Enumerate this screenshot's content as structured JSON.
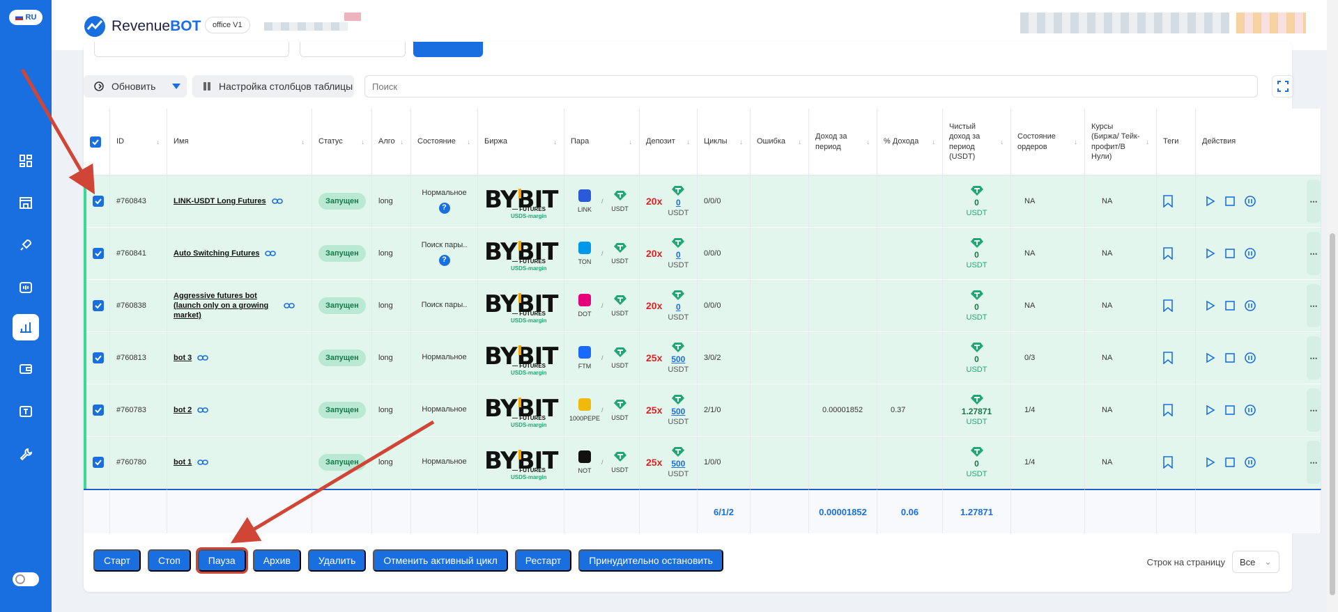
{
  "lang": "RU",
  "brand": {
    "part1": "Revenue",
    "part2": "BOT"
  },
  "office": "office V1",
  "toolbar": {
    "refresh": "Обновить",
    "columns": "Настройка столбцов таблицы",
    "search_placeholder": "Поиск"
  },
  "headers": [
    "ID",
    "Имя",
    "Статус",
    "Алго",
    "Состояние",
    "Биржа",
    "Пара",
    "Депозит",
    "Циклы",
    "Ошибка",
    "Доход за период",
    "% Дохода",
    "Чистый доход за период (USDT)",
    "Состояние ордеров",
    "Курсы (Биржа/ Тейк-профит/В Нули)",
    "Теги",
    "Действия"
  ],
  "exchange": {
    "name": "BYBIT",
    "sub1": "— FUTURES",
    "sub2": "USDS-margin"
  },
  "rows": [
    {
      "id": "#760843",
      "name": "LINK-USDT Long Futures",
      "status": "Запущен",
      "algo": "long",
      "state": "Нормальное",
      "state_q": "?",
      "coin": "LINK",
      "quote": "USDT",
      "sep": "/",
      "lev": "20x",
      "dep": "0",
      "dep_cur": "USDT",
      "cycles": "0/0/0",
      "error": "",
      "income": "",
      "pct": "",
      "net": "0",
      "net_cur": "USDT",
      "orders": "NA",
      "rates": "NA",
      "coin_color": "#2a5ada"
    },
    {
      "id": "#760841",
      "name": "Auto Switching Futures",
      "status": "Запущен",
      "algo": "long",
      "state": "Поиск пары..",
      "state_q": "?",
      "coin": "TON",
      "quote": "USDT",
      "sep": "/",
      "lev": "20x",
      "dep": "0",
      "dep_cur": "USDT",
      "cycles": "0/0/0",
      "error": "",
      "income": "",
      "pct": "",
      "net": "0",
      "net_cur": "USDT",
      "orders": "NA",
      "rates": "NA",
      "coin_color": "#0098ea"
    },
    {
      "id": "#760838",
      "name": "Aggressive futures bot (launch only on a growing market)",
      "status": "Запущен",
      "algo": "long",
      "state": "Поиск пары..",
      "state_q": "",
      "coin": "DOT",
      "quote": "USDT",
      "sep": "/",
      "lev": "20x",
      "dep": "0",
      "dep_cur": "USDT",
      "cycles": "0/0/0",
      "error": "",
      "income": "",
      "pct": "",
      "net": "0",
      "net_cur": "USDT",
      "orders": "NA",
      "rates": "NA",
      "coin_color": "#e6007a"
    },
    {
      "id": "#760813",
      "name": "bot 3",
      "status": "Запущен",
      "algo": "long",
      "state": "Нормальное",
      "state_q": "",
      "coin": "FTM",
      "quote": "USDT",
      "sep": "/",
      "lev": "25x",
      "dep": "500",
      "dep_cur": "USDT",
      "cycles": "3/0/2",
      "error": "",
      "income": "",
      "pct": "",
      "net": "0",
      "net_cur": "USDT",
      "orders": "0/3",
      "rates": "NA",
      "coin_color": "#1969ff"
    },
    {
      "id": "#760783",
      "name": "bot 2",
      "status": "Запущен",
      "algo": "long",
      "state": "Нормальное",
      "state_q": "",
      "coin": "1000PEPE",
      "quote": "USDT",
      "sep": "/",
      "lev": "25x",
      "dep": "500",
      "dep_cur": "USDT",
      "cycles": "2/1/0",
      "error": "",
      "income": "0.00001852",
      "pct": "0.37",
      "net": "1.27871",
      "net_cur": "USDT",
      "orders": "1/4",
      "rates": "NA",
      "coin_color": "#f0b90b"
    },
    {
      "id": "#760780",
      "name": "bot 1",
      "status": "Запущен",
      "algo": "long",
      "state": "Нормальное",
      "state_q": "",
      "coin": "NOT",
      "quote": "USDT",
      "sep": "/",
      "lev": "25x",
      "dep": "500",
      "dep_cur": "USDT",
      "cycles": "1/0/0",
      "error": "",
      "income": "",
      "pct": "",
      "net": "0",
      "net_cur": "USDT",
      "orders": "1/4",
      "rates": "NA",
      "coin_color": "#111111"
    }
  ],
  "totals": {
    "cycles": "6/1/2",
    "income": "0.00001852",
    "pct": "0.06",
    "net": "1.27871"
  },
  "bottom_buttons": [
    "Старт",
    "Стоп",
    "Пауза",
    "Архив",
    "Удалить",
    "Отменить активный цикл",
    "Рестарт",
    "Принудительно остановить"
  ],
  "highlighted_button": "Пауза",
  "per_page": {
    "label": "Строк на страницу",
    "value": "Все"
  },
  "colors": {
    "sidebar": "#1a6fe0",
    "accent": "#1a6fe0",
    "row_bg": "#e3f6ee",
    "arrow": "#d04535",
    "leverage": "#e02020"
  }
}
